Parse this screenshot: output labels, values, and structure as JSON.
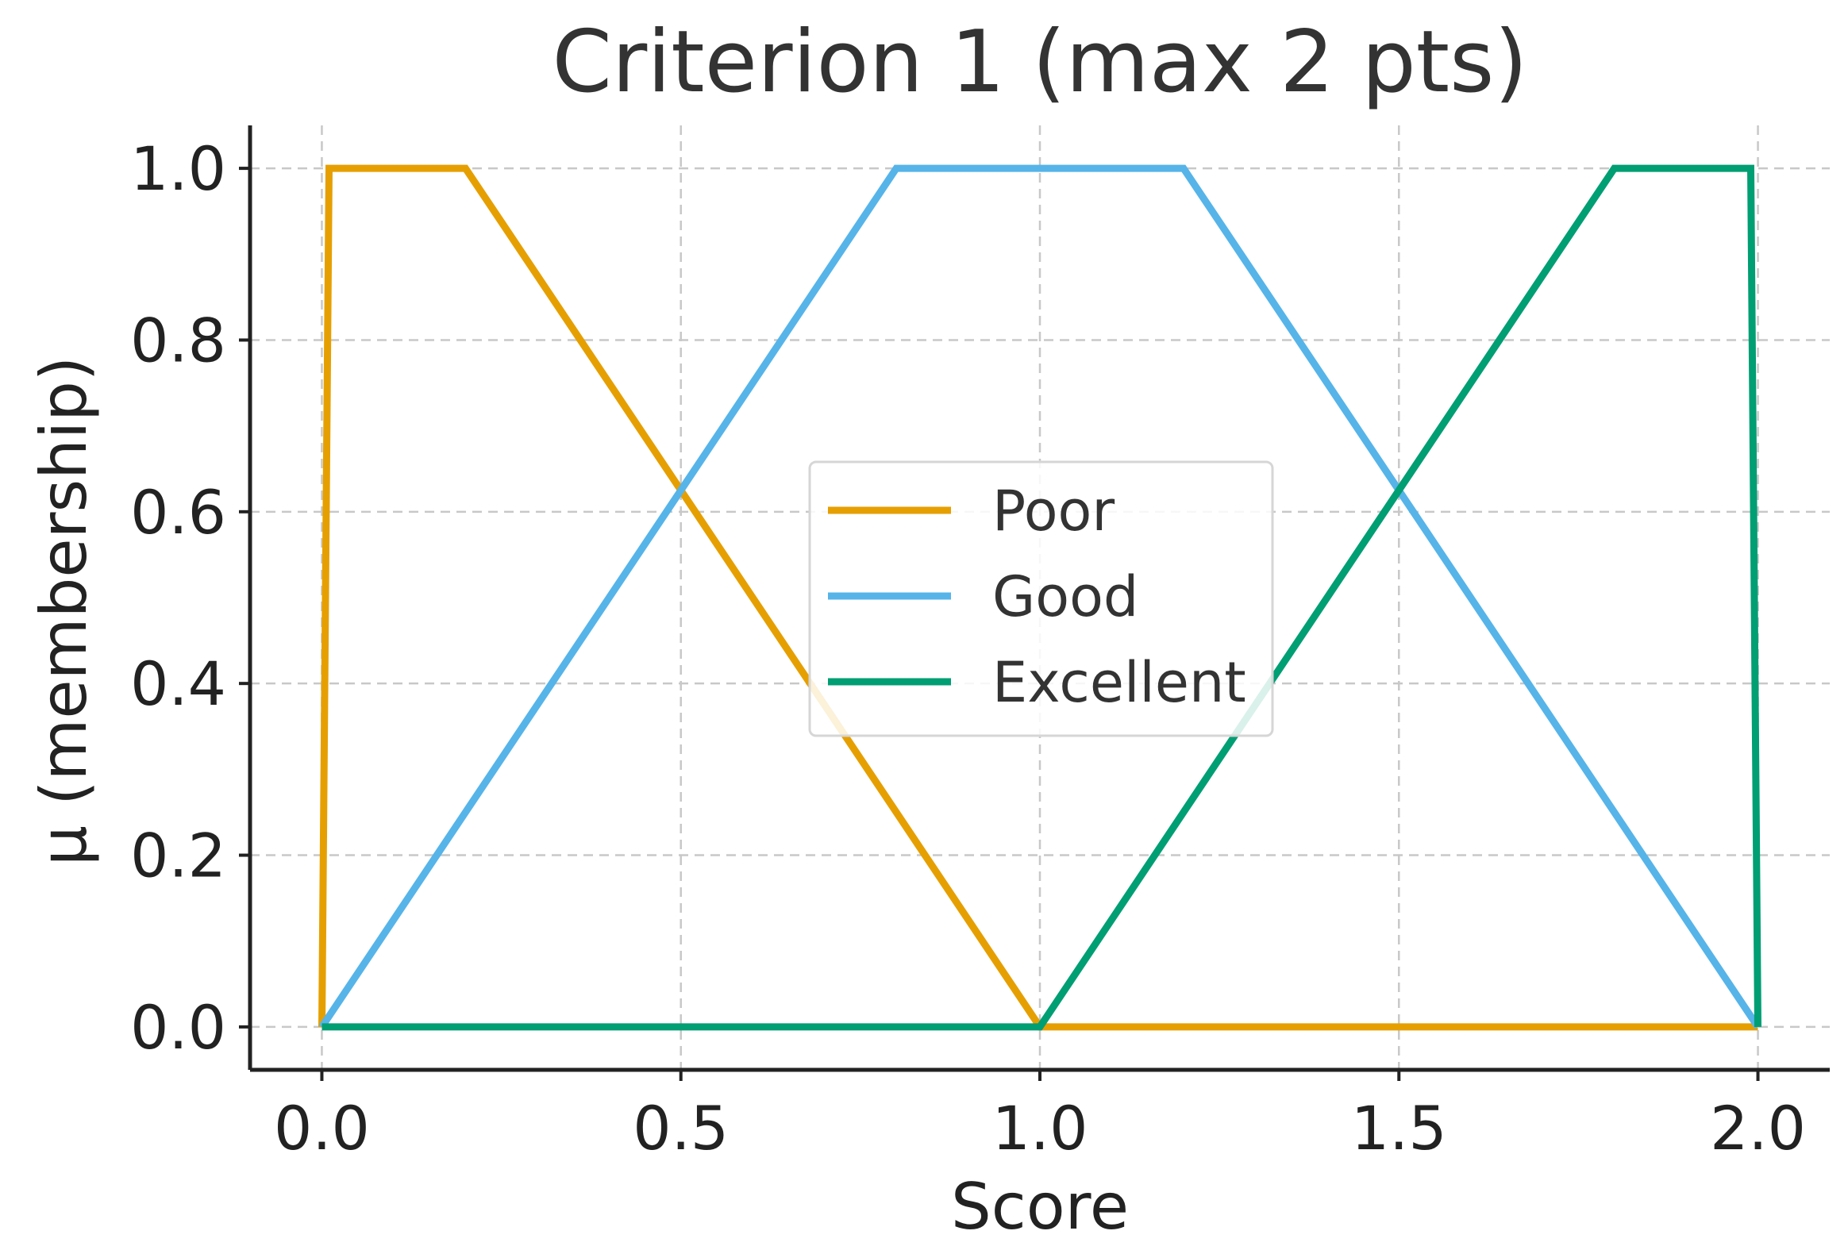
{
  "chart_data": {
    "type": "line",
    "title": "Criterion 1 (max 2 pts)",
    "xlabel": "Score",
    "ylabel": "μ (membership)",
    "xlim": [
      -0.1,
      2.1
    ],
    "ylim": [
      -0.05,
      1.05
    ],
    "x_ticks": [
      0.0,
      0.5,
      1.0,
      1.5,
      2.0
    ],
    "x_tick_labels": [
      "0.0",
      "0.5",
      "1.0",
      "1.5",
      "2.0"
    ],
    "y_ticks": [
      0.0,
      0.2,
      0.4,
      0.6,
      0.8,
      1.0
    ],
    "y_tick_labels": [
      "0.0",
      "0.2",
      "0.4",
      "0.6",
      "0.8",
      "1.0"
    ],
    "grid": true,
    "legend_position": "center",
    "series": [
      {
        "name": "Poor",
        "color": "#E69F00",
        "x": [
          0.0,
          0.01,
          0.2,
          1.0,
          2.0
        ],
        "y": [
          0.0,
          1.0,
          1.0,
          0.0,
          0.0
        ]
      },
      {
        "name": "Good",
        "color": "#56B4E9",
        "x": [
          0.0,
          0.8,
          1.2,
          2.0
        ],
        "y": [
          0.0,
          1.0,
          1.0,
          0.0
        ]
      },
      {
        "name": "Excellent",
        "color": "#009E73",
        "x": [
          0.0,
          1.0,
          1.8,
          1.99,
          2.0
        ],
        "y": [
          0.0,
          0.0,
          1.0,
          1.0,
          0.0
        ]
      }
    ]
  }
}
